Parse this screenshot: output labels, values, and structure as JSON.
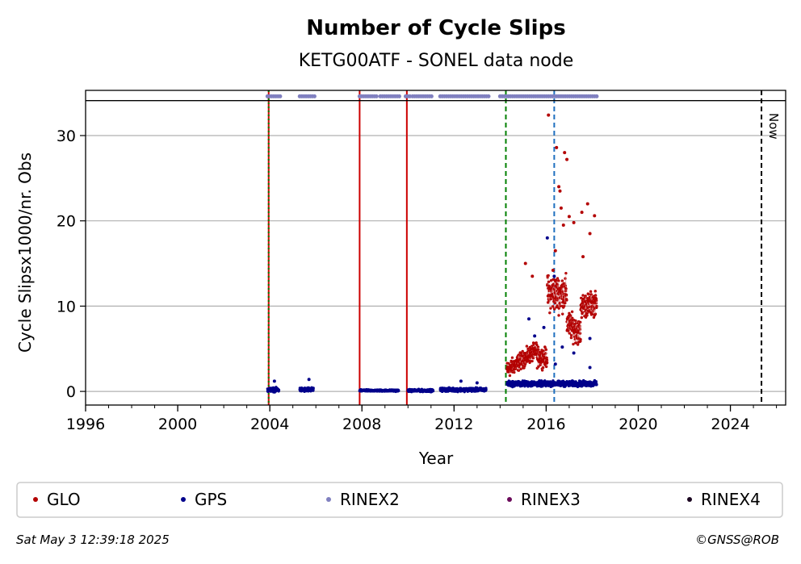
{
  "chart_data": {
    "type": "scatter",
    "title": "Number of Cycle Slips",
    "subtitle": "KETG00ATF - SONEL data node",
    "xlabel": "Year",
    "ylabel": "Cycle Slipsx1000/nr. Obs",
    "xlim": [
      1996,
      2026.4
    ],
    "ylim": [
      -1.6,
      35.3
    ],
    "obs_band_ymin": 34.1,
    "xticks": [
      "1996",
      "2000",
      "2004",
      "2008",
      "2012",
      "2016",
      "2020",
      "2024"
    ],
    "yticks": [
      "0",
      "10",
      "20",
      "30"
    ],
    "grid": "horizontal",
    "legend_placement": "bottom",
    "series": [
      {
        "name": "GLO",
        "color": "#b30000",
        "segments": [
          {
            "x0": 2014.3,
            "x1": 2015.6,
            "base": 2.5,
            "slope": 1.8,
            "spread": 1.4
          },
          {
            "x0": 2015.6,
            "x1": 2016.05,
            "base": 4.0,
            "slope": 0.0,
            "spread": 1.6
          },
          {
            "x0": 2016.05,
            "x1": 2016.9,
            "base": 11.5,
            "slope": 0.0,
            "spread": 3.0
          },
          {
            "x0": 2016.9,
            "x1": 2017.5,
            "base": 8.0,
            "slope": -2.0,
            "spread": 2.2
          },
          {
            "x0": 2017.5,
            "x1": 2018.2,
            "base": 10.0,
            "slope": 0.5,
            "spread": 2.0
          }
        ],
        "outliers": [
          {
            "x": 2016.1,
            "y": 32.4
          },
          {
            "x": 2016.45,
            "y": 28.6
          },
          {
            "x": 2016.8,
            "y": 28.0
          },
          {
            "x": 2016.9,
            "y": 27.2
          },
          {
            "x": 2016.55,
            "y": 24.0
          },
          {
            "x": 2016.6,
            "y": 23.5
          },
          {
            "x": 2017.8,
            "y": 22.0
          },
          {
            "x": 2016.65,
            "y": 21.5
          },
          {
            "x": 2017.55,
            "y": 21.0
          },
          {
            "x": 2018.1,
            "y": 20.6
          },
          {
            "x": 2017.0,
            "y": 20.5
          },
          {
            "x": 2016.75,
            "y": 19.5
          },
          {
            "x": 2017.2,
            "y": 19.8
          },
          {
            "x": 2017.9,
            "y": 18.5
          },
          {
            "x": 2015.1,
            "y": 15.0
          },
          {
            "x": 2016.4,
            "y": 16.5
          },
          {
            "x": 2017.6,
            "y": 15.8
          },
          {
            "x": 2015.4,
            "y": 13.5
          },
          {
            "x": 2016.3,
            "y": 14.2
          }
        ]
      },
      {
        "name": "GPS",
        "color": "#00008b",
        "segments": [
          {
            "x0": 2003.9,
            "x1": 2004.4,
            "base": 0.2,
            "slope": 0.0,
            "spread": 0.35
          },
          {
            "x0": 2005.3,
            "x1": 2005.9,
            "base": 0.2,
            "slope": 0.0,
            "spread": 0.35
          },
          {
            "x0": 2007.9,
            "x1": 2009.6,
            "base": 0.1,
            "slope": 0.0,
            "spread": 0.15
          },
          {
            "x0": 2010.0,
            "x1": 2011.1,
            "base": 0.1,
            "slope": 0.0,
            "spread": 0.2
          },
          {
            "x0": 2011.4,
            "x1": 2013.4,
            "base": 0.2,
            "slope": 0.0,
            "spread": 0.3
          },
          {
            "x0": 2014.3,
            "x1": 2018.2,
            "base": 0.9,
            "slope": 0.0,
            "spread": 0.45
          }
        ],
        "outliers": [
          {
            "x": 2004.2,
            "y": 1.2
          },
          {
            "x": 2005.7,
            "y": 1.4
          },
          {
            "x": 2016.05,
            "y": 18.0
          },
          {
            "x": 2016.35,
            "y": 13.5
          },
          {
            "x": 2015.25,
            "y": 8.5
          },
          {
            "x": 2015.9,
            "y": 7.5
          },
          {
            "x": 2015.5,
            "y": 6.5
          },
          {
            "x": 2016.7,
            "y": 5.2
          },
          {
            "x": 2017.2,
            "y": 4.5
          },
          {
            "x": 2017.9,
            "y": 6.2
          },
          {
            "x": 2012.3,
            "y": 1.2
          },
          {
            "x": 2013.0,
            "y": 1.0
          },
          {
            "x": 2016.4,
            "y": 3.2
          },
          {
            "x": 2017.9,
            "y": 2.8
          }
        ]
      },
      {
        "name": "RINEX2",
        "color": "#8080c0"
      },
      {
        "name": "RINEX3",
        "color": "#6a0a5a"
      },
      {
        "name": "RINEX4",
        "color": "#1a0520"
      }
    ],
    "rinex2_periods": [
      [
        2003.9,
        2004.5
      ],
      [
        2005.3,
        2005.95
      ],
      [
        2007.9,
        2008.7
      ],
      [
        2008.8,
        2009.7
      ],
      [
        2009.9,
        2010.1
      ],
      [
        2010.2,
        2011.1
      ],
      [
        2011.4,
        2013.5
      ],
      [
        2014.0,
        2018.2
      ]
    ],
    "vlines": [
      {
        "x": 2003.95,
        "color": "#cc0000",
        "style": "solid"
      },
      {
        "x": 2003.95,
        "color": "#008000",
        "style": "dotted"
      },
      {
        "x": 2007.9,
        "color": "#cc0000",
        "style": "solid"
      },
      {
        "x": 2009.95,
        "color": "#cc0000",
        "style": "solid"
      },
      {
        "x": 2014.25,
        "color": "#008000",
        "style": "dashed"
      },
      {
        "x": 2016.35,
        "color": "#1f6fbf",
        "style": "dashed"
      },
      {
        "x": 2025.35,
        "color": "#000000",
        "style": "dashed"
      }
    ],
    "now_label": "Now"
  },
  "footer": {
    "date": "Sat May  3 12:39:18 2025",
    "credit": "©GNSS@ROB"
  }
}
